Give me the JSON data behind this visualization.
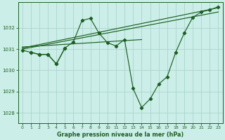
{
  "title": "Graphe pression niveau de la mer (hPa)",
  "bg_color": "#cceee8",
  "grid_color": "#aad4cc",
  "line_color": "#1a6020",
  "xlim": [
    -0.5,
    23.5
  ],
  "ylim": [
    1027.5,
    1033.2
  ],
  "yticks": [
    1028,
    1029,
    1030,
    1031,
    1032
  ],
  "xticks": [
    0,
    1,
    2,
    3,
    4,
    5,
    6,
    7,
    8,
    9,
    10,
    11,
    12,
    13,
    14,
    15,
    16,
    17,
    18,
    19,
    20,
    21,
    22,
    23
  ],
  "series_main": {
    "x": [
      0,
      1,
      2,
      3,
      4,
      5,
      6,
      7,
      8,
      9,
      10,
      11,
      12,
      13,
      14,
      15,
      16,
      17,
      18,
      19,
      20,
      21,
      22,
      23
    ],
    "y": [
      1030.95,
      1030.85,
      1030.75,
      1030.75,
      1030.3,
      1031.05,
      1031.35,
      1032.35,
      1032.45,
      1031.75,
      1031.3,
      1031.15,
      1031.45,
      1029.15,
      1028.25,
      1028.65,
      1029.35,
      1029.7,
      1030.85,
      1031.75,
      1032.5,
      1032.75,
      1032.85,
      1033.0
    ]
  },
  "series_trend1": {
    "x": [
      0,
      23
    ],
    "y": [
      1031.05,
      1032.95
    ]
  },
  "series_trend2": {
    "x": [
      0,
      23
    ],
    "y": [
      1031.0,
      1032.75
    ]
  },
  "series_trend3": {
    "x": [
      0,
      14
    ],
    "y": [
      1031.1,
      1031.45
    ]
  },
  "series_zigzag": {
    "x": [
      1,
      2,
      3,
      4,
      5
    ],
    "y": [
      1030.85,
      1030.75,
      1030.75,
      1030.3,
      1031.05
    ]
  }
}
